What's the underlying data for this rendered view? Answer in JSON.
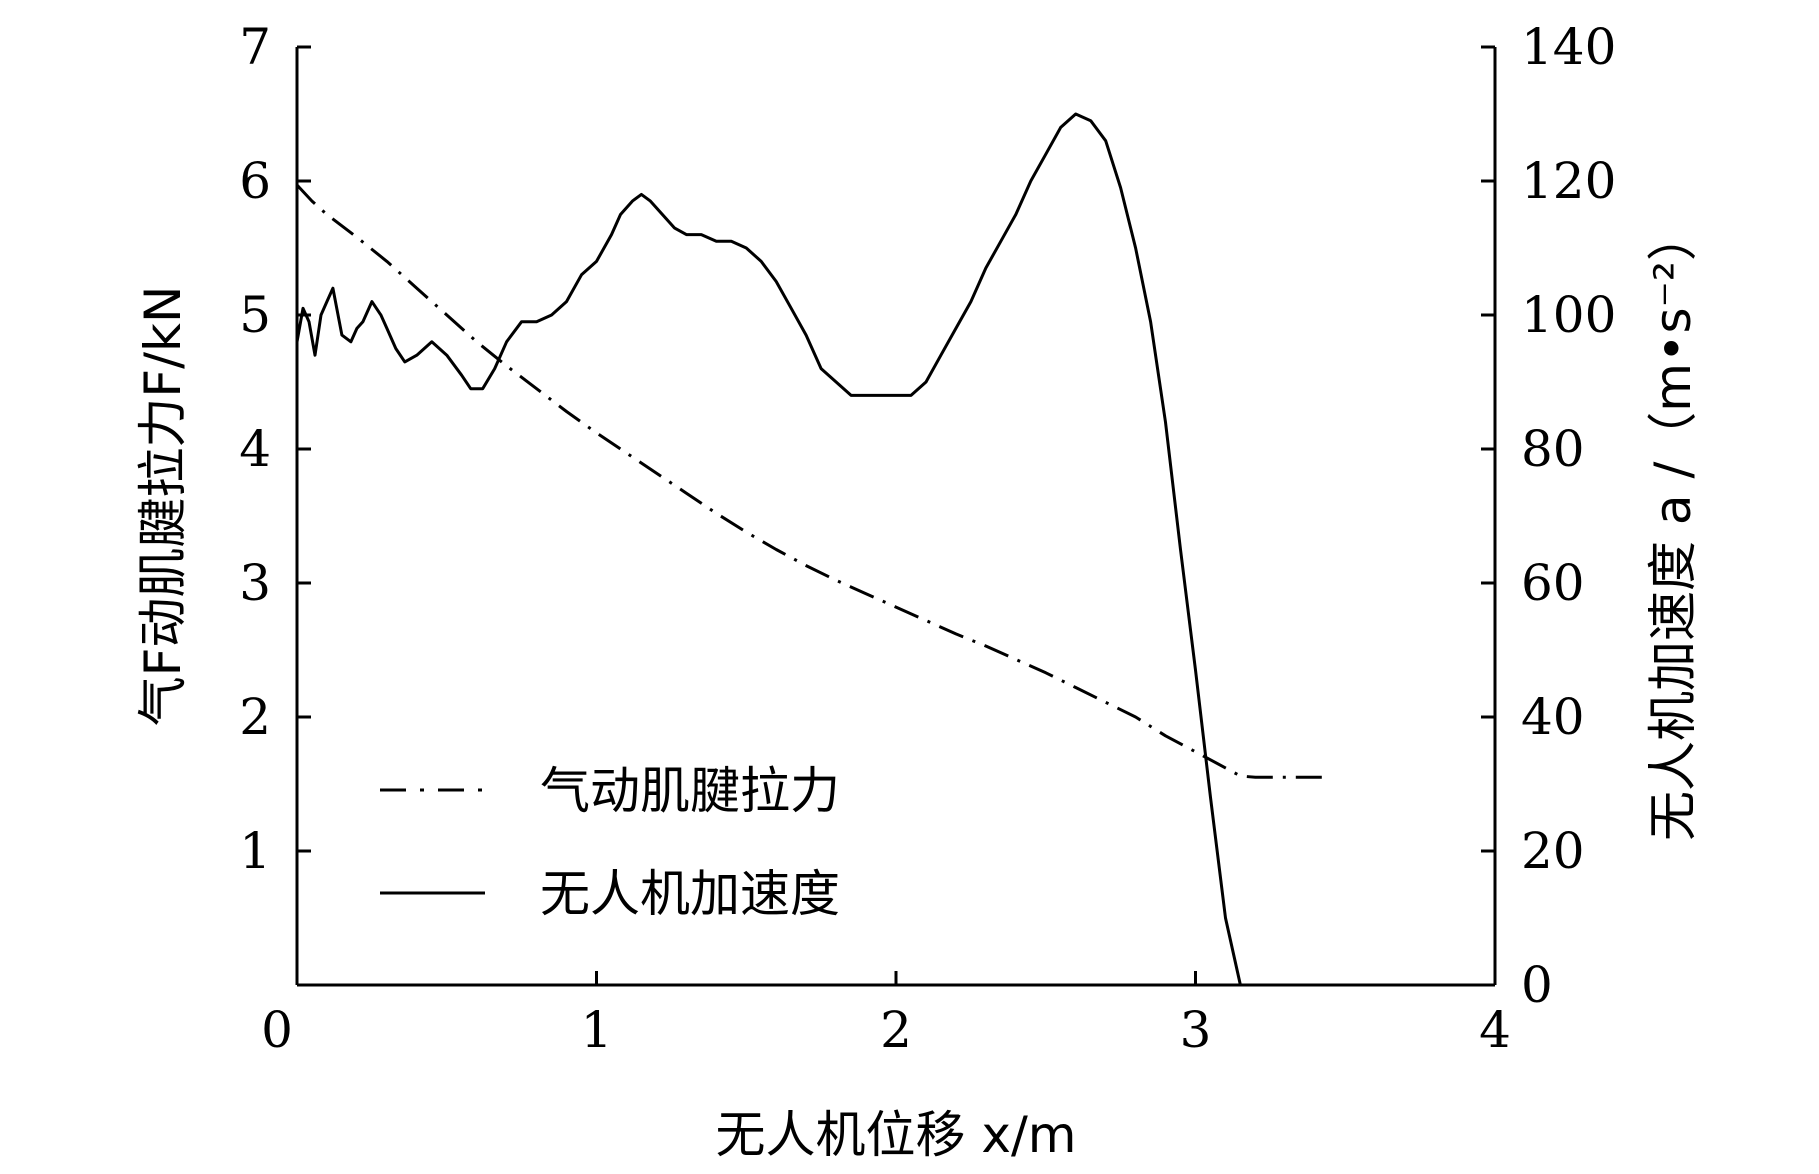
{
  "chart_data": {
    "type": "line",
    "xlabel": "无人机位移 x/m",
    "ylabel_left": "气F动肌腱拉力F/kN",
    "ylabel_right": "无人机加速度 a /（m•s⁻²）",
    "xlim": [
      0,
      4
    ],
    "ylim_left": [
      0,
      7
    ],
    "ylim_right": [
      0,
      140
    ],
    "x_ticks": [
      "0",
      "1",
      "2",
      "3",
      "4"
    ],
    "y_left_ticks": [
      "1",
      "2",
      "3",
      "4",
      "5",
      "6",
      "7"
    ],
    "y_right_ticks": [
      "0",
      "20",
      "40",
      "60",
      "80",
      "100",
      "120",
      "140"
    ],
    "grid": false,
    "legend_position": "bottom-left",
    "series": [
      {
        "name": "气动肌腱拉力",
        "axis": "left",
        "style": "dash-dot",
        "x": [
          0.0,
          0.05,
          0.1,
          0.2,
          0.3,
          0.4,
          0.5,
          0.6,
          0.7,
          0.8,
          0.9,
          1.0,
          1.1,
          1.2,
          1.3,
          1.4,
          1.5,
          1.6,
          1.7,
          1.8,
          1.9,
          2.0,
          2.1,
          2.2,
          2.3,
          2.4,
          2.5,
          2.6,
          2.7,
          2.8,
          2.9,
          3.0,
          3.1,
          3.15,
          3.2,
          3.3,
          3.45
        ],
        "values": [
          5.97,
          5.85,
          5.75,
          5.58,
          5.4,
          5.2,
          5.0,
          4.8,
          4.62,
          4.45,
          4.28,
          4.12,
          3.97,
          3.82,
          3.67,
          3.52,
          3.38,
          3.25,
          3.13,
          3.02,
          2.92,
          2.82,
          2.72,
          2.62,
          2.53,
          2.43,
          2.33,
          2.22,
          2.11,
          2.0,
          1.86,
          1.74,
          1.62,
          1.56,
          1.55,
          1.55,
          1.55
        ]
      },
      {
        "name": "无人机加速度",
        "axis": "right",
        "style": "solid",
        "x": [
          0.0,
          0.02,
          0.04,
          0.06,
          0.08,
          0.1,
          0.12,
          0.15,
          0.18,
          0.2,
          0.22,
          0.25,
          0.28,
          0.3,
          0.33,
          0.36,
          0.4,
          0.45,
          0.5,
          0.55,
          0.58,
          0.62,
          0.66,
          0.7,
          0.75,
          0.8,
          0.85,
          0.9,
          0.95,
          1.0,
          1.05,
          1.08,
          1.12,
          1.15,
          1.18,
          1.22,
          1.26,
          1.3,
          1.35,
          1.4,
          1.45,
          1.5,
          1.55,
          1.6,
          1.65,
          1.7,
          1.75,
          1.8,
          1.85,
          1.9,
          1.95,
          2.0,
          2.05,
          2.1,
          2.15,
          2.2,
          2.25,
          2.3,
          2.35,
          2.4,
          2.45,
          2.5,
          2.55,
          2.6,
          2.65,
          2.7,
          2.75,
          2.8,
          2.85,
          2.9,
          2.95,
          3.0,
          3.05,
          3.1,
          3.15,
          3.2,
          3.25,
          3.3
        ],
        "values": [
          96,
          101,
          99,
          94,
          100,
          102,
          104,
          97,
          96,
          98,
          99,
          102,
          100,
          98,
          95,
          93,
          94,
          96,
          94,
          91,
          89,
          89,
          92,
          96,
          99,
          99,
          100,
          102,
          106,
          108,
          112,
          115,
          117,
          118,
          117,
          115,
          113,
          112,
          112,
          111,
          111,
          110,
          108,
          105,
          101,
          97,
          92,
          90,
          88,
          88,
          88,
          88,
          88,
          90,
          94,
          98,
          102,
          107,
          111,
          115,
          120,
          124,
          128,
          130,
          129,
          126,
          119,
          110,
          99,
          84,
          65,
          47,
          28,
          10,
          0,
          0,
          0,
          0
        ]
      }
    ]
  },
  "legend": {
    "items": [
      {
        "label": "气动肌腱拉力",
        "style": "dash-dot"
      },
      {
        "label": "无人机加速度",
        "style": "solid"
      }
    ]
  },
  "colors": {
    "line": "#000000",
    "background": "#ffffff"
  }
}
